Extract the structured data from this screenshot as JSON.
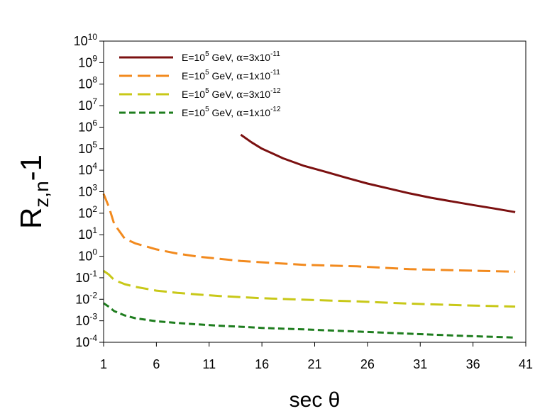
{
  "chart_data": {
    "type": "line",
    "title": "",
    "xlabel": "sec θ",
    "ylabel": "R z,n -1",
    "ylabel_parts": {
      "main": "R",
      "subscript": "z,n",
      "suffix": "-1"
    },
    "xlim": [
      1,
      41
    ],
    "ylim_log10": [
      -4,
      10
    ],
    "yscale": "log",
    "x_ticks": [
      1,
      6,
      11,
      16,
      21,
      26,
      31,
      36,
      41
    ],
    "y_tick_base": "10",
    "y_tick_exponents": [
      "-4",
      "-3",
      "-2",
      "-1",
      "0",
      "1",
      "2",
      "3",
      "4",
      "5",
      "6",
      "7",
      "8",
      "9",
      "10"
    ],
    "legend_position": "top-left",
    "series": [
      {
        "name": "E=10^5 GeV, α=3x10^-11",
        "legend": {
          "pre": "E=10",
          "exp1": "5",
          "mid": " GeV, ",
          "greek": "α",
          "eq": "=3x10",
          "exp2": "-11"
        },
        "color": "#7b1010",
        "style": "solid",
        "x": [
          14,
          15,
          16,
          17,
          18,
          20,
          22,
          24,
          26,
          28,
          30,
          32,
          34,
          36,
          38,
          40
        ],
        "log10_y": [
          5.65,
          5.3,
          5.0,
          4.78,
          4.55,
          4.2,
          3.93,
          3.65,
          3.38,
          3.15,
          2.92,
          2.72,
          2.55,
          2.38,
          2.22,
          2.05
        ]
      },
      {
        "name": "E=10^5 GeV, α=1x10^-11",
        "legend": {
          "pre": "E=10",
          "exp1": "5",
          "mid": " GeV, ",
          "greek": "α",
          "eq": "=1x10",
          "exp2": "-11"
        },
        "color": "#f28a1e",
        "style": "long-dash",
        "x": [
          1,
          1.5,
          2,
          3,
          4,
          6,
          8,
          10,
          12,
          14,
          16,
          20,
          25,
          30,
          35,
          40
        ],
        "log10_y": [
          2.9,
          2.3,
          1.5,
          0.82,
          0.6,
          0.32,
          0.12,
          -0.02,
          -0.12,
          -0.22,
          -0.28,
          -0.4,
          -0.47,
          -0.6,
          -0.66,
          -0.72
        ]
      },
      {
        "name": "E=10^5 GeV, α=3x10^-12",
        "legend": {
          "pre": "E=10",
          "exp1": "5",
          "mid": " GeV, ",
          "greek": "α",
          "eq": "=3x10",
          "exp2": "-12"
        },
        "color": "#c8c818",
        "style": "long-dash",
        "x": [
          1,
          1.5,
          2,
          3,
          4,
          6,
          8,
          10,
          12,
          14,
          16,
          20,
          25,
          30,
          35,
          40
        ],
        "log10_y": [
          -0.68,
          -0.85,
          -1.1,
          -1.3,
          -1.42,
          -1.6,
          -1.7,
          -1.78,
          -1.85,
          -1.9,
          -1.95,
          -2.02,
          -2.1,
          -2.2,
          -2.28,
          -2.34
        ]
      },
      {
        "name": "E=10^5 GeV, α=1x10^-12",
        "legend": {
          "pre": "E=10",
          "exp1": "5",
          "mid": " GeV, ",
          "greek": "α",
          "eq": "=1x10",
          "exp2": "-12"
        },
        "color": "#1e7d1e",
        "style": "short-dash",
        "x": [
          1,
          1.5,
          2,
          3,
          4,
          6,
          8,
          10,
          12,
          14,
          16,
          20,
          25,
          30,
          35,
          40
        ],
        "log10_y": [
          -2.18,
          -2.35,
          -2.55,
          -2.75,
          -2.88,
          -3.02,
          -3.1,
          -3.17,
          -3.23,
          -3.28,
          -3.33,
          -3.4,
          -3.5,
          -3.6,
          -3.7,
          -3.78
        ]
      }
    ]
  }
}
